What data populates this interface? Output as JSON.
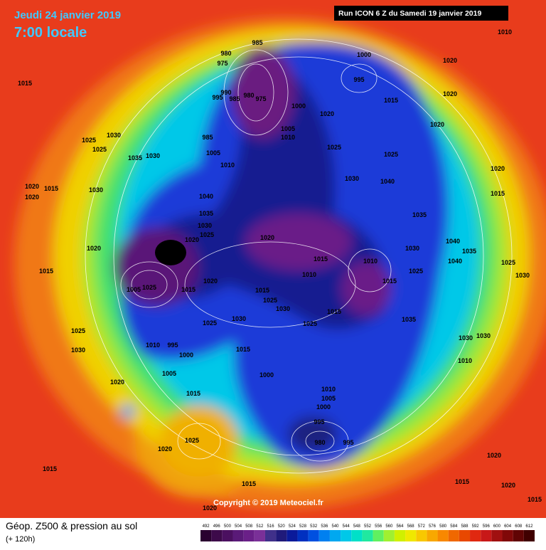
{
  "header": {
    "date": "Jeudi 24 janvier 2019",
    "time": "7:00 locale",
    "run": "Run ICON 6 Z du Samedi 19 janvier 2019"
  },
  "copyright": "Copyright © 2019 Meteociel.fr",
  "footer": {
    "title": "Géop. Z500 & pression au sol",
    "subtitle": "(+ 120h)"
  },
  "legend": {
    "levels": [
      492,
      496,
      500,
      504,
      508,
      512,
      516,
      520,
      524,
      528,
      532,
      536,
      540,
      544,
      548,
      552,
      556,
      560,
      564,
      568,
      572,
      576,
      580,
      584,
      588,
      592,
      596,
      600,
      604,
      608,
      612
    ],
    "colors": [
      "#2a0030",
      "#3d0a4a",
      "#4b1060",
      "#5a1a78",
      "#6a2088",
      "#7a3098",
      "#40308a",
      "#201a7a",
      "#0a1a9a",
      "#0030c0",
      "#0050e0",
      "#0080f0",
      "#00a8f0",
      "#00c8e8",
      "#00e0c8",
      "#20e8a0",
      "#60f060",
      "#a0f030",
      "#d0f000",
      "#f0e800",
      "#f8c800",
      "#f8a800",
      "#f88800",
      "#f06800",
      "#e84800",
      "#e02810",
      "#c81818",
      "#a01010",
      "#800808",
      "#600404",
      "#400000"
    ]
  },
  "isobars": [
    "1015",
    "1025",
    "1030",
    "1025",
    "1030",
    "1035",
    "1020",
    "1015",
    "1020",
    "1030",
    "1020",
    "1015",
    "1025",
    "1030",
    "1020",
    "1015",
    "1020",
    "1025",
    "1015",
    "1005",
    "1010",
    "995",
    "1000",
    "1005",
    "1025",
    "1015",
    "1020",
    "1025",
    "1030",
    "1015",
    "1000",
    "1010",
    "1005",
    "1000",
    "995",
    "980",
    "995",
    "1025",
    "1015",
    "1030",
    "1025",
    "1015",
    "1010",
    "1015",
    "1020",
    "1010",
    "1015",
    "1025",
    "1035",
    "1030",
    "1010",
    "1030",
    "1035",
    "1040",
    "1025",
    "1015",
    "1020",
    "1000",
    "995",
    "1020",
    "1010",
    "1020",
    "1020",
    "1015",
    "1025",
    "1030",
    "1030",
    "985",
    "980",
    "975",
    "990",
    "995",
    "985",
    "980",
    "975",
    "1000",
    "1005",
    "1010",
    "985",
    "1005",
    "1010",
    "1020",
    "1025",
    "1030",
    "1040",
    "1035",
    "1030",
    "1025",
    "1020",
    "1040",
    "1035",
    "1040",
    "1020",
    "1015",
    "1015",
    "1020",
    "1020",
    "1015"
  ]
}
